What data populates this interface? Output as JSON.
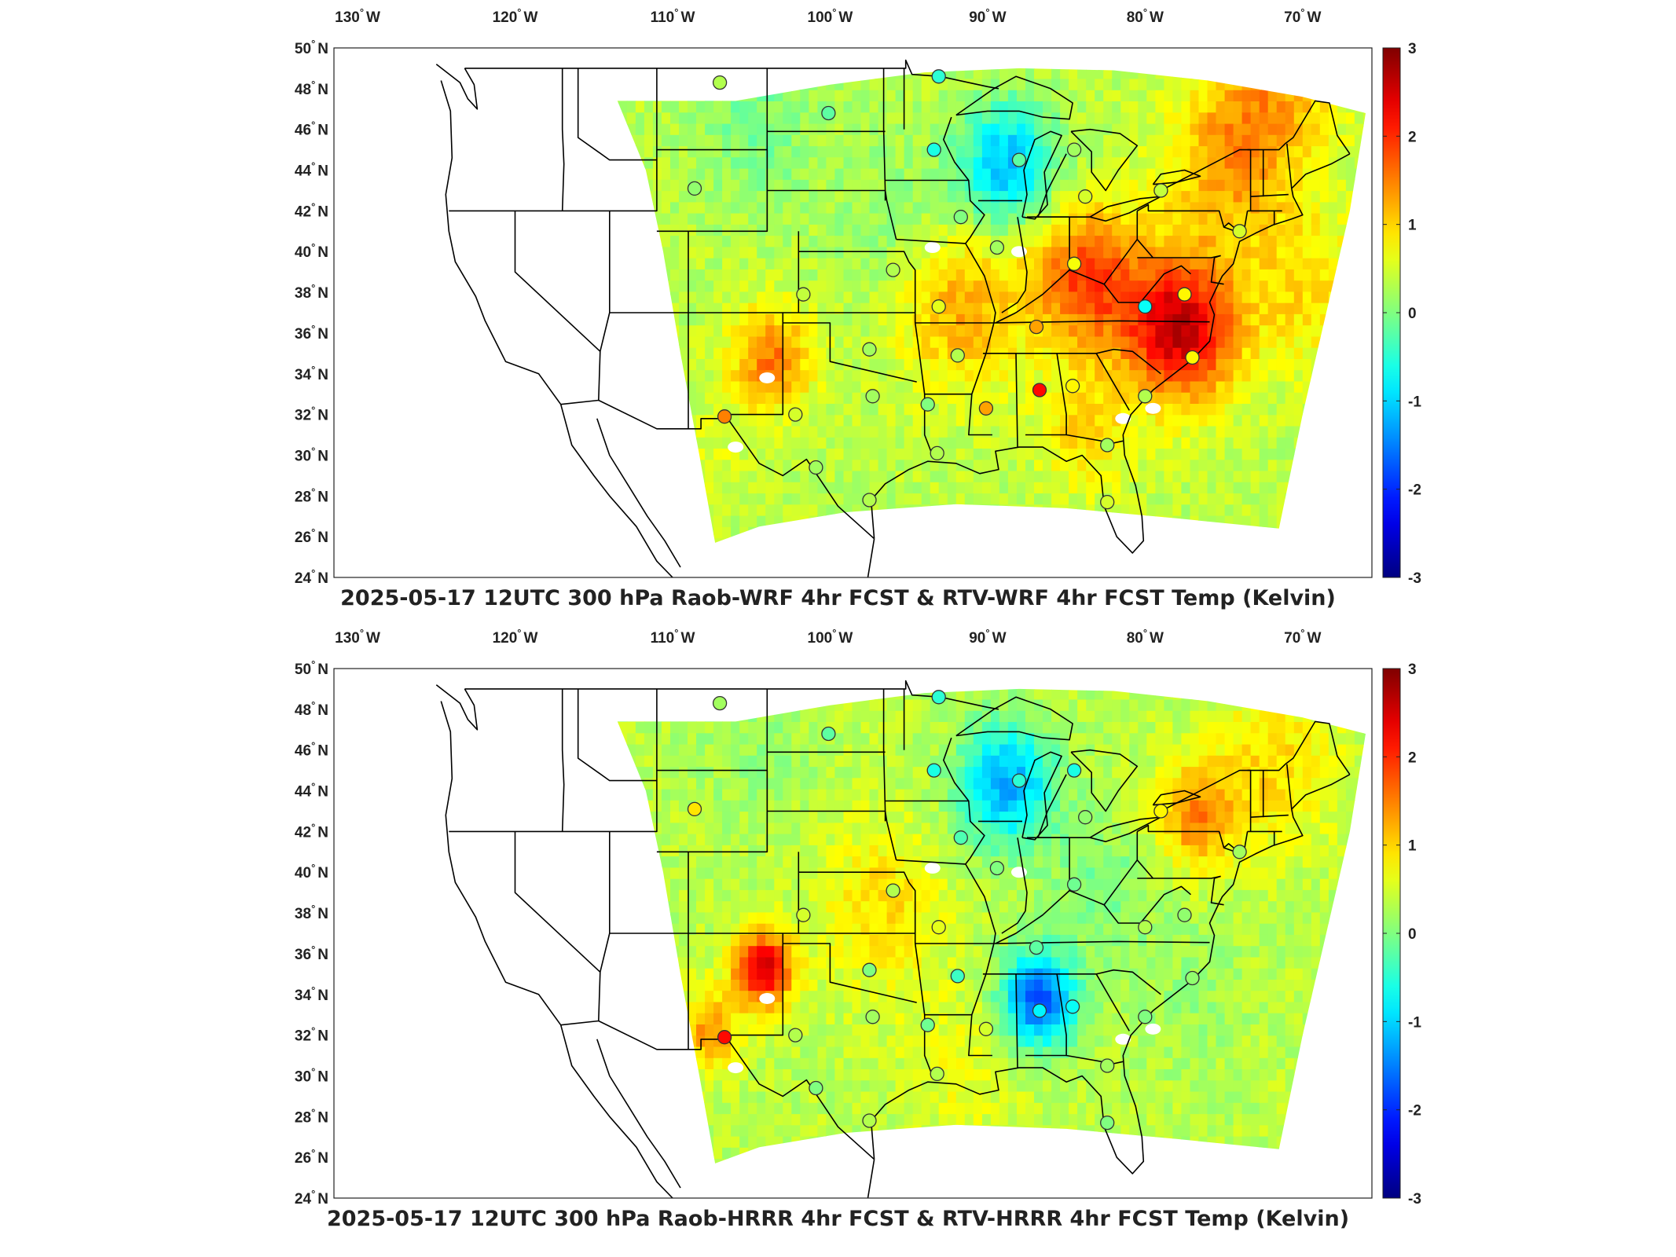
{
  "figure": {
    "colorbar": {
      "min": -3,
      "max": 3,
      "ticks": [
        "3",
        "2",
        "1",
        "0",
        "-1",
        "-2",
        "-3"
      ],
      "colormap": "jet"
    },
    "lon_labels": [
      "130",
      "120",
      "110",
      "100",
      "90",
      "80",
      "70"
    ],
    "lat_labels": [
      "50",
      "48",
      "46",
      "44",
      "42",
      "40",
      "38",
      "36",
      "34",
      "32",
      "30",
      "28",
      "26",
      "24"
    ],
    "lon_hemisphere": "W",
    "lat_hemisphere": "N",
    "degree_symbol": "°"
  },
  "panels": [
    {
      "title": "2025-05-17 12UTC 300 hPa Raob-WRF 4hr FCST & RTV-WRF 4hr FCST Temp (Kelvin)",
      "field_bias": "warm",
      "stations": [
        {
          "lon": -107.0,
          "lat": 48.3,
          "value": 0.3
        },
        {
          "lon": -100.1,
          "lat": 46.8,
          "value": -0.2
        },
        {
          "lon": -93.1,
          "lat": 48.6,
          "value": -0.5
        },
        {
          "lon": -108.6,
          "lat": 43.1,
          "value": 0.1
        },
        {
          "lon": -93.4,
          "lat": 45.0,
          "value": -0.6
        },
        {
          "lon": -88.0,
          "lat": 44.5,
          "value": -0.2
        },
        {
          "lon": -84.5,
          "lat": 45.0,
          "value": 0.2
        },
        {
          "lon": -83.8,
          "lat": 42.7,
          "value": 0.5
        },
        {
          "lon": -91.7,
          "lat": 41.7,
          "value": 0.0
        },
        {
          "lon": -89.4,
          "lat": 40.2,
          "value": 0.2
        },
        {
          "lon": -79.0,
          "lat": 43.0,
          "value": 0.4
        },
        {
          "lon": -74.0,
          "lat": 41.0,
          "value": 0.5
        },
        {
          "lon": -96.0,
          "lat": 39.1,
          "value": 0.3
        },
        {
          "lon": -101.7,
          "lat": 37.9,
          "value": 0.4
        },
        {
          "lon": -93.1,
          "lat": 37.3,
          "value": 0.6
        },
        {
          "lon": -84.5,
          "lat": 39.4,
          "value": 0.7
        },
        {
          "lon": -80.0,
          "lat": 37.3,
          "value": -0.7
        },
        {
          "lon": -77.5,
          "lat": 37.9,
          "value": 0.8
        },
        {
          "lon": -86.9,
          "lat": 36.3,
          "value": 1.3
        },
        {
          "lon": -97.5,
          "lat": 35.2,
          "value": 0.2
        },
        {
          "lon": -91.9,
          "lat": 34.9,
          "value": 0.3
        },
        {
          "lon": -77.0,
          "lat": 34.8,
          "value": 0.8
        },
        {
          "lon": -97.3,
          "lat": 32.9,
          "value": 0.2
        },
        {
          "lon": -93.8,
          "lat": 32.5,
          "value": 0.0
        },
        {
          "lon": -90.1,
          "lat": 32.3,
          "value": 1.3
        },
        {
          "lon": -86.7,
          "lat": 33.2,
          "value": 2.2
        },
        {
          "lon": -84.6,
          "lat": 33.4,
          "value": 0.8
        },
        {
          "lon": -80.0,
          "lat": 32.9,
          "value": 0.3
        },
        {
          "lon": -106.7,
          "lat": 31.9,
          "value": 1.5
        },
        {
          "lon": -102.2,
          "lat": 32.0,
          "value": 0.5
        },
        {
          "lon": -100.9,
          "lat": 29.4,
          "value": 0.2
        },
        {
          "lon": -93.2,
          "lat": 30.1,
          "value": 0.3
        },
        {
          "lon": -82.4,
          "lat": 30.5,
          "value": 0.2
        },
        {
          "lon": -97.5,
          "lat": 27.8,
          "value": 0.3
        },
        {
          "lon": -82.4,
          "lat": 27.7,
          "value": 0.5
        }
      ]
    },
    {
      "title": "2025-05-17 12UTC 300 hPa Raob-HRRR 4hr FCST & RTV-HRRR 4hr FCST Temp (Kelvin)",
      "field_bias": "cool",
      "stations": [
        {
          "lon": -107.0,
          "lat": 48.3,
          "value": 0.2
        },
        {
          "lon": -100.1,
          "lat": 46.8,
          "value": -0.2
        },
        {
          "lon": -93.1,
          "lat": 48.6,
          "value": -0.5
        },
        {
          "lon": -108.6,
          "lat": 43.1,
          "value": 0.9
        },
        {
          "lon": -93.4,
          "lat": 45.0,
          "value": -0.6
        },
        {
          "lon": -88.0,
          "lat": 44.5,
          "value": -0.5
        },
        {
          "lon": -84.5,
          "lat": 45.0,
          "value": -0.6
        },
        {
          "lon": -83.8,
          "lat": 42.7,
          "value": 0.1
        },
        {
          "lon": -91.7,
          "lat": 41.7,
          "value": -0.3
        },
        {
          "lon": -89.4,
          "lat": 40.2,
          "value": 0.0
        },
        {
          "lon": -79.0,
          "lat": 43.0,
          "value": 0.8
        },
        {
          "lon": -74.0,
          "lat": 41.0,
          "value": 0.2
        },
        {
          "lon": -96.0,
          "lat": 39.1,
          "value": 0.3
        },
        {
          "lon": -101.7,
          "lat": 37.9,
          "value": 0.5
        },
        {
          "lon": -93.1,
          "lat": 37.3,
          "value": 0.6
        },
        {
          "lon": -84.5,
          "lat": 39.4,
          "value": -0.1
        },
        {
          "lon": -80.0,
          "lat": 37.3,
          "value": 0.3
        },
        {
          "lon": -77.5,
          "lat": 37.9,
          "value": 0.1
        },
        {
          "lon": -86.9,
          "lat": 36.3,
          "value": -0.2
        },
        {
          "lon": -97.5,
          "lat": 35.2,
          "value": 0.0
        },
        {
          "lon": -91.9,
          "lat": 34.9,
          "value": -0.4
        },
        {
          "lon": -77.0,
          "lat": 34.8,
          "value": 0.1
        },
        {
          "lon": -97.3,
          "lat": 32.9,
          "value": 0.2
        },
        {
          "lon": -93.8,
          "lat": 32.5,
          "value": -0.1
        },
        {
          "lon": -90.1,
          "lat": 32.3,
          "value": 0.5
        },
        {
          "lon": -86.7,
          "lat": 33.2,
          "value": -0.8
        },
        {
          "lon": -84.6,
          "lat": 33.4,
          "value": -0.7
        },
        {
          "lon": -80.0,
          "lat": 32.9,
          "value": 0.0
        },
        {
          "lon": -106.7,
          "lat": 31.9,
          "value": 2.2
        },
        {
          "lon": -102.2,
          "lat": 32.0,
          "value": 0.3
        },
        {
          "lon": -100.9,
          "lat": 29.4,
          "value": 0.0
        },
        {
          "lon": -93.2,
          "lat": 30.1,
          "value": 0.3
        },
        {
          "lon": -82.4,
          "lat": 30.5,
          "value": 0.2
        },
        {
          "lon": -97.5,
          "lat": 27.8,
          "value": 0.3
        },
        {
          "lon": -82.4,
          "lat": 27.7,
          "value": 0.0
        }
      ]
    }
  ]
}
